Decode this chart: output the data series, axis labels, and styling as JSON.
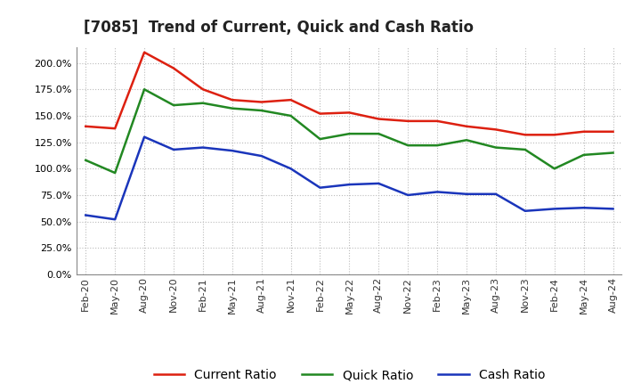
{
  "title": "[7085]  Trend of Current, Quick and Cash Ratio",
  "x_labels": [
    "Feb-20",
    "May-20",
    "Aug-20",
    "Nov-20",
    "Feb-21",
    "May-21",
    "Aug-21",
    "Nov-21",
    "Feb-22",
    "May-22",
    "Aug-22",
    "Nov-22",
    "Feb-23",
    "May-23",
    "Aug-23",
    "Nov-23",
    "Feb-24",
    "May-24",
    "Aug-24"
  ],
  "current_ratio": [
    140.0,
    138.0,
    210.0,
    195.0,
    175.0,
    165.0,
    163.0,
    165.0,
    152.0,
    153.0,
    147.0,
    145.0,
    145.0,
    140.0,
    137.0,
    132.0,
    132.0,
    135.0,
    135.0
  ],
  "quick_ratio": [
    108.0,
    96.0,
    175.0,
    160.0,
    162.0,
    157.0,
    155.0,
    150.0,
    128.0,
    133.0,
    133.0,
    122.0,
    122.0,
    127.0,
    120.0,
    118.0,
    100.0,
    113.0,
    115.0
  ],
  "cash_ratio": [
    56.0,
    52.0,
    130.0,
    118.0,
    120.0,
    117.0,
    112.0,
    100.0,
    82.0,
    85.0,
    86.0,
    75.0,
    78.0,
    76.0,
    76.0,
    60.0,
    62.0,
    63.0,
    62.0
  ],
  "current_color": "#dd2010",
  "quick_color": "#228822",
  "cash_color": "#1a35bb",
  "ylim": [
    0,
    215
  ],
  "yticks": [
    0,
    25,
    50,
    75,
    100,
    125,
    150,
    175,
    200
  ],
  "background_color": "#ffffff",
  "plot_bg_color": "#ffffff",
  "grid_color": "#bbbbbb",
  "legend_labels": [
    "Current Ratio",
    "Quick Ratio",
    "Cash Ratio"
  ],
  "title_fontsize": 12,
  "tick_fontsize": 8,
  "legend_fontsize": 10
}
